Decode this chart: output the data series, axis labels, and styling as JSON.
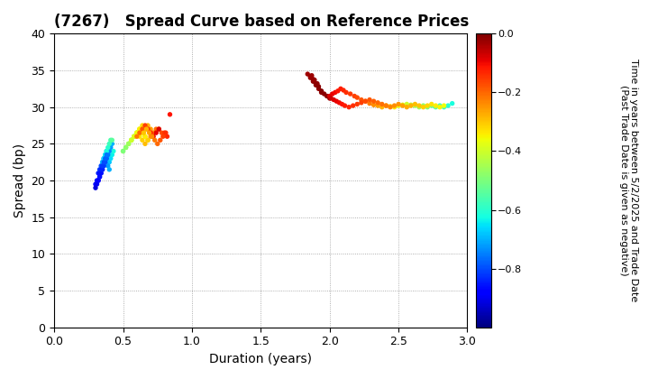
{
  "title": "(7267)   Spread Curve based on Reference Prices",
  "xlabel": "Duration (years)",
  "ylabel": "Spread (bp)",
  "colorbar_label_line1": "Time in years between 5/2/2025 and Trade Date",
  "colorbar_label_line2": "(Past Trade Date is given as negative)",
  "xlim": [
    0.0,
    3.0
  ],
  "ylim": [
    0,
    40
  ],
  "xticks": [
    0.0,
    0.5,
    1.0,
    1.5,
    2.0,
    2.5,
    3.0
  ],
  "yticks": [
    0,
    5,
    10,
    15,
    20,
    25,
    30,
    35,
    40
  ],
  "cbar_ticks": [
    0.0,
    -0.2,
    -0.4,
    -0.6,
    -0.8
  ],
  "cbar_min": -1.0,
  "cbar_max": 0.0,
  "cluster1_dur": [
    0.3,
    0.31,
    0.32,
    0.33,
    0.34,
    0.35,
    0.36,
    0.37,
    0.38,
    0.39,
    0.4,
    0.41,
    0.42,
    0.43,
    0.34,
    0.35,
    0.36,
    0.37,
    0.38,
    0.39,
    0.4,
    0.32,
    0.33,
    0.34,
    0.35,
    0.36,
    0.37,
    0.38,
    0.39,
    0.4,
    0.41,
    0.42,
    0.35,
    0.36,
    0.37,
    0.38,
    0.39,
    0.4,
    0.41,
    0.42,
    0.33,
    0.34,
    0.35,
    0.36,
    0.37,
    0.38,
    0.3,
    0.31,
    0.32,
    0.33
  ],
  "cluster1_spr": [
    19.5,
    20.0,
    21.0,
    21.5,
    22.0,
    22.5,
    23.0,
    23.5,
    24.0,
    23.5,
    22.5,
    23.0,
    23.5,
    24.0,
    21.0,
    21.5,
    22.0,
    22.5,
    23.0,
    22.0,
    21.5,
    20.0,
    20.5,
    21.0,
    21.5,
    22.0,
    22.5,
    23.0,
    23.5,
    24.0,
    24.5,
    25.0,
    22.5,
    23.0,
    23.5,
    24.0,
    24.5,
    25.0,
    25.5,
    25.5,
    21.0,
    21.5,
    22.0,
    22.5,
    23.0,
    23.5,
    19.0,
    19.5,
    20.0,
    20.5
  ],
  "cluster1_time": [
    -0.88,
    -0.86,
    -0.84,
    -0.82,
    -0.8,
    -0.78,
    -0.76,
    -0.74,
    -0.72,
    -0.7,
    -0.68,
    -0.66,
    -0.64,
    -0.62,
    -0.82,
    -0.8,
    -0.78,
    -0.76,
    -0.74,
    -0.72,
    -0.7,
    -0.9,
    -0.88,
    -0.86,
    -0.84,
    -0.82,
    -0.8,
    -0.78,
    -0.76,
    -0.74,
    -0.72,
    -0.7,
    -0.68,
    -0.66,
    -0.64,
    -0.62,
    -0.6,
    -0.58,
    -0.56,
    -0.54,
    -0.86,
    -0.84,
    -0.82,
    -0.8,
    -0.78,
    -0.76,
    -0.92,
    -0.9,
    -0.88,
    -0.86
  ],
  "cluster2_dur": [
    0.5,
    0.52,
    0.54,
    0.56,
    0.58,
    0.6,
    0.62,
    0.64,
    0.66,
    0.68,
    0.7,
    0.72,
    0.74,
    0.76,
    0.78,
    0.8,
    0.82,
    0.84,
    0.52,
    0.54,
    0.56,
    0.58,
    0.6,
    0.62,
    0.64,
    0.66,
    0.68,
    0.5,
    0.52,
    0.54,
    0.56,
    0.58,
    0.6,
    0.62,
    0.64,
    0.66,
    0.56,
    0.58,
    0.6,
    0.62,
    0.64,
    0.66,
    0.68,
    0.7,
    0.72,
    0.6,
    0.62,
    0.64,
    0.66,
    0.68,
    0.7,
    0.72,
    0.74,
    0.76,
    0.65,
    0.67,
    0.69,
    0.71,
    0.73,
    0.75,
    0.77,
    0.79,
    0.81
  ],
  "cluster2_spr": [
    24.0,
    24.5,
    25.0,
    25.5,
    26.0,
    26.5,
    26.0,
    25.5,
    25.0,
    25.5,
    26.0,
    26.5,
    27.0,
    27.0,
    26.5,
    26.5,
    26.0,
    29.0,
    24.5,
    25.0,
    25.5,
    26.0,
    26.5,
    27.0,
    26.5,
    26.0,
    25.5,
    24.0,
    24.5,
    25.0,
    25.5,
    26.0,
    26.5,
    27.0,
    26.5,
    26.0,
    25.5,
    26.0,
    26.5,
    27.0,
    27.5,
    27.0,
    27.5,
    27.0,
    26.5,
    26.0,
    26.5,
    27.0,
    27.5,
    27.0,
    26.5,
    26.0,
    26.5,
    27.0,
    26.5,
    27.0,
    26.5,
    26.0,
    25.5,
    25.0,
    25.5,
    26.0,
    26.5
  ],
  "cluster2_time": [
    -0.45,
    -0.43,
    -0.41,
    -0.39,
    -0.37,
    -0.35,
    -0.33,
    -0.31,
    -0.29,
    -0.27,
    -0.25,
    -0.23,
    -0.21,
    -0.19,
    -0.17,
    -0.15,
    -0.13,
    -0.11,
    -0.47,
    -0.45,
    -0.43,
    -0.41,
    -0.39,
    -0.37,
    -0.35,
    -0.33,
    -0.31,
    -0.5,
    -0.48,
    -0.46,
    -0.44,
    -0.42,
    -0.4,
    -0.38,
    -0.36,
    -0.34,
    -0.4,
    -0.38,
    -0.36,
    -0.34,
    -0.32,
    -0.3,
    -0.28,
    -0.26,
    -0.24,
    -0.22,
    -0.2,
    -0.18,
    -0.16,
    -0.14,
    -0.12,
    -0.1,
    -0.09,
    -0.08,
    -0.3,
    -0.28,
    -0.26,
    -0.24,
    -0.22,
    -0.2,
    -0.18,
    -0.16,
    -0.14
  ],
  "cluster3_dur": [
    1.86,
    1.88,
    1.9,
    1.92,
    1.94,
    1.84,
    1.86,
    1.88,
    1.9,
    1.92,
    1.94,
    1.96,
    1.98,
    2.0,
    1.87,
    1.89,
    1.91
  ],
  "cluster3_spr": [
    34.0,
    33.5,
    33.0,
    32.5,
    32.0,
    34.5,
    34.2,
    33.8,
    33.2,
    32.8,
    32.2,
    31.8,
    31.5,
    31.2,
    34.3,
    33.7,
    33.2
  ],
  "cluster3_time": [
    -0.02,
    -0.015,
    -0.01,
    -0.02,
    -0.015,
    -0.03,
    -0.025,
    -0.02,
    -0.015,
    -0.01,
    -0.005,
    -0.01,
    -0.015,
    -0.02,
    -0.025,
    -0.02,
    -0.015
  ],
  "cluster4_dur": [
    2.0,
    2.02,
    2.04,
    2.06,
    2.08,
    2.1,
    2.12,
    2.15,
    2.18,
    2.2,
    2.23,
    2.26,
    2.29,
    2.32,
    2.35,
    2.38,
    2.41,
    2.44,
    2.47,
    2.5,
    2.53,
    2.56,
    2.59,
    2.62,
    2.65,
    2.68,
    2.71,
    2.74,
    2.77,
    2.8,
    2.83,
    2.86,
    2.89,
    2.01,
    2.03,
    2.05,
    2.07,
    2.09,
    2.11,
    2.14,
    2.17,
    2.2,
    2.23,
    2.26,
    2.29,
    2.32,
    2.35,
    2.38,
    2.41,
    2.44,
    2.47,
    2.5,
    2.53,
    2.56,
    2.59,
    2.62,
    2.65,
    2.68,
    2.71,
    2.74,
    2.77,
    2.8,
    2.83
  ],
  "cluster4_spr": [
    31.5,
    31.8,
    32.0,
    32.2,
    32.5,
    32.3,
    32.0,
    31.8,
    31.5,
    31.3,
    31.0,
    30.8,
    30.5,
    30.3,
    30.2,
    30.0,
    30.2,
    30.1,
    30.0,
    30.2,
    30.3,
    30.4,
    30.3,
    30.2,
    30.0,
    30.2,
    30.0,
    30.2,
    30.0,
    30.2,
    30.0,
    30.2,
    30.5,
    31.2,
    31.0,
    30.8,
    30.6,
    30.4,
    30.2,
    30.0,
    30.2,
    30.4,
    30.6,
    30.8,
    31.0,
    30.8,
    30.6,
    30.4,
    30.2,
    30.0,
    30.2,
    30.4,
    30.2,
    30.0,
    30.2,
    30.4,
    30.2,
    30.0,
    30.2,
    30.4,
    30.2,
    30.0,
    30.2
  ],
  "cluster4_time": [
    -0.08,
    -0.09,
    -0.1,
    -0.11,
    -0.12,
    -0.13,
    -0.14,
    -0.15,
    -0.16,
    -0.17,
    -0.18,
    -0.2,
    -0.22,
    -0.24,
    -0.26,
    -0.28,
    -0.3,
    -0.32,
    -0.34,
    -0.36,
    -0.38,
    -0.4,
    -0.42,
    -0.44,
    -0.46,
    -0.48,
    -0.5,
    -0.52,
    -0.54,
    -0.56,
    -0.58,
    -0.6,
    -0.62,
    -0.07,
    -0.08,
    -0.09,
    -0.1,
    -0.11,
    -0.12,
    -0.13,
    -0.14,
    -0.15,
    -0.16,
    -0.17,
    -0.18,
    -0.19,
    -0.2,
    -0.21,
    -0.22,
    -0.23,
    -0.24,
    -0.25,
    -0.26,
    -0.27,
    -0.28,
    -0.29,
    -0.3,
    -0.31,
    -0.32,
    -0.33,
    -0.34,
    -0.35,
    -0.36
  ],
  "marker_size": 15,
  "background_color": "#ffffff",
  "grid_color": "#999999",
  "title_fontsize": 12,
  "axis_label_fontsize": 10,
  "tick_fontsize": 9,
  "cbar_fontsize": 8
}
